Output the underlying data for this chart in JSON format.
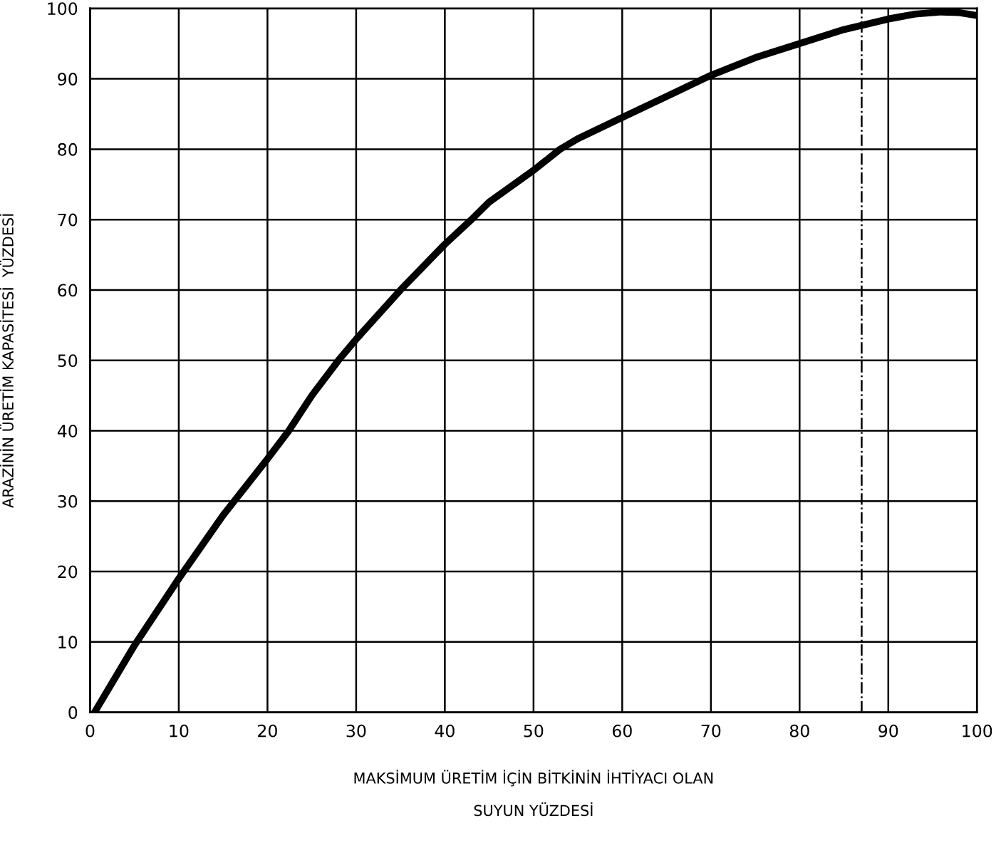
{
  "chart_data": {
    "type": "line",
    "xlabel": "MAKSİMUM ÜRETİM İÇİN BİTKİNİN İHTİYACI OLAN\nSUYUN YÜZDESİ",
    "ylabel": "ARAZİNİN ÜRETİM KAPASİTESİ  YÜZDESİ",
    "series": [
      {
        "color": "#000000",
        "x": [
          0.5,
          5,
          10,
          15,
          20,
          22.4,
          25,
          28,
          30,
          35,
          40,
          43,
          45,
          50,
          53,
          55,
          60,
          65,
          70,
          75,
          80,
          85,
          90,
          93,
          96,
          98,
          100
        ],
        "values": [
          0,
          9.5,
          19,
          28,
          36,
          40,
          45,
          50,
          53,
          60,
          66.5,
          70,
          72.5,
          77,
          80,
          81.5,
          84.5,
          87.5,
          90.5,
          93,
          95,
          97,
          98.5,
          99.2,
          99.5,
          99.4,
          99
        ]
      }
    ],
    "xlim": [
      0,
      100
    ],
    "ylim": [
      0,
      100
    ],
    "xticks": [
      0,
      10,
      20,
      30,
      40,
      50,
      60,
      70,
      80,
      90,
      100
    ],
    "yticks": [
      0,
      10,
      20,
      30,
      40,
      50,
      60,
      70,
      80,
      90,
      100
    ],
    "grid": true,
    "marker": "none",
    "line_style": "solid",
    "ref_lines": [
      {
        "axis": "x",
        "value": 87,
        "color": "#000000",
        "line_style": "dashdot"
      }
    ]
  }
}
